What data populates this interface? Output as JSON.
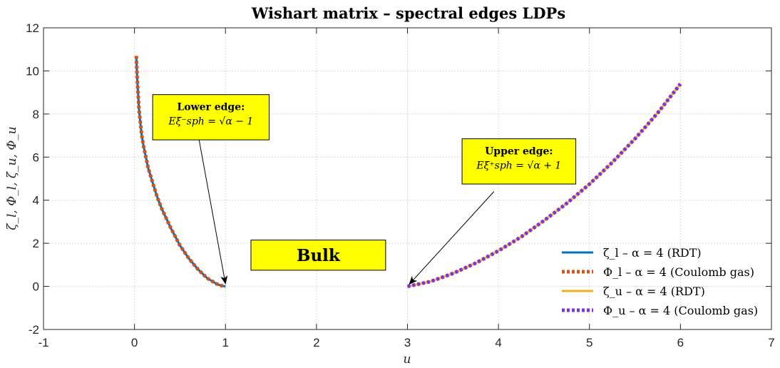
{
  "chart_data": {
    "type": "line",
    "title": "Wishart matrix – spectral edges LDPs",
    "xlabel": "u",
    "ylabel": "ζ_l, Φ_l, ζ_u, Φ_u",
    "xlim": [
      -1,
      7
    ],
    "ylim": [
      -2,
      12
    ],
    "xticks": [
      "-1",
      "0",
      "1",
      "2",
      "3",
      "4",
      "5",
      "6",
      "7"
    ],
    "yticks": [
      "-2",
      "0",
      "2",
      "4",
      "6",
      "8",
      "10",
      "12"
    ],
    "grid": true,
    "legend_position": "bottom-right",
    "series": [
      {
        "name": "ζ_l – α = 4 (RDT)",
        "color": "#0072BD",
        "style": "solid",
        "x": [
          0.02,
          0.03,
          0.05,
          0.08,
          0.1,
          0.15,
          0.2,
          0.25,
          0.3,
          0.4,
          0.5,
          0.6,
          0.7,
          0.8,
          0.9,
          0.95,
          1.0
        ],
        "y": [
          10.6,
          9.6,
          8.2,
          7.0,
          6.5,
          5.5,
          4.8,
          4.15,
          3.6,
          2.7,
          1.9,
          1.28,
          0.78,
          0.38,
          0.12,
          0.04,
          0.0
        ]
      },
      {
        "name": "Φ_l – α = 4 (Coulomb gas)",
        "color": "#D95319",
        "style": "dotted",
        "x": [
          0.02,
          0.03,
          0.05,
          0.08,
          0.1,
          0.15,
          0.2,
          0.25,
          0.3,
          0.4,
          0.5,
          0.6,
          0.7,
          0.8,
          0.9,
          0.95,
          1.0
        ],
        "y": [
          10.7,
          9.6,
          8.2,
          7.0,
          6.5,
          5.5,
          4.8,
          4.15,
          3.6,
          2.7,
          1.9,
          1.28,
          0.78,
          0.38,
          0.12,
          0.04,
          0.0
        ]
      },
      {
        "name": "ζ_u – α = 4 (RDT)",
        "color": "#EDB120",
        "style": "solid",
        "x": [
          3.0,
          3.25,
          3.5,
          3.75,
          4.0,
          4.25,
          4.5,
          4.75,
          5.0,
          5.25,
          5.5,
          5.75,
          6.0
        ],
        "y": [
          0.0,
          0.22,
          0.6,
          1.08,
          1.65,
          2.3,
          3.05,
          3.85,
          4.75,
          5.75,
          6.85,
          8.05,
          9.4
        ]
      },
      {
        "name": "Φ_u – α = 4 (Coulomb gas)",
        "color": "#7E2FDE",
        "style": "dotted",
        "x": [
          3.0,
          3.25,
          3.5,
          3.75,
          4.0,
          4.25,
          4.5,
          4.75,
          5.0,
          5.25,
          5.5,
          5.75,
          6.0
        ],
        "y": [
          0.0,
          0.22,
          0.6,
          1.08,
          1.65,
          2.3,
          3.05,
          3.85,
          4.75,
          5.75,
          6.85,
          8.05,
          9.4
        ]
      }
    ],
    "annotations": [
      {
        "name": "lower-edge",
        "line1": "Lower edge:",
        "line2": "Eξ⁻sph = √α − 1",
        "box_x": [
          0.2,
          1.48
        ],
        "box_y": [
          6.8,
          8.9
        ],
        "arrow_from": [
          0.71,
          6.8
        ],
        "arrow_to": [
          1.0,
          0.12
        ]
      },
      {
        "name": "upper-edge",
        "line1": "Upper edge:",
        "line2": "Eξ⁺sph = √α + 1",
        "box_x": [
          3.6,
          4.85
        ],
        "box_y": [
          4.75,
          6.85
        ],
        "arrow_from": [
          3.95,
          4.4
        ],
        "arrow_to": [
          3.02,
          0.1
        ]
      },
      {
        "name": "bulk",
        "line1": "Bulk",
        "box_x": [
          1.28,
          2.76
        ],
        "box_y": [
          0.75,
          2.15
        ]
      }
    ]
  }
}
